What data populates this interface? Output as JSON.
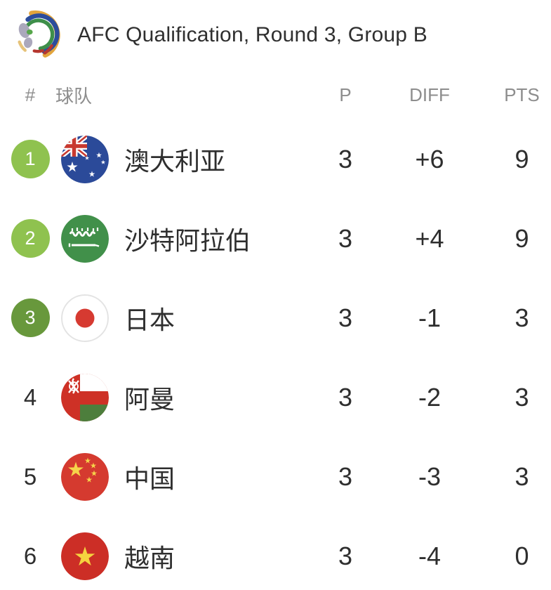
{
  "header": {
    "title": "AFC Qualification, Round 3, Group B",
    "logo": "afc-logo"
  },
  "table": {
    "columns": {
      "rank": "#",
      "team": "球队",
      "played": "P",
      "diff": "DIFF",
      "points": "PTS"
    },
    "rows": [
      {
        "rank": "1",
        "team": "澳大利亚",
        "flag": "australia-flag",
        "played": "3",
        "diff": "+6",
        "points": "9",
        "rank_style": "promotion",
        "badge_color": "#8FC24F"
      },
      {
        "rank": "2",
        "team": "沙特阿拉伯",
        "flag": "saudi-arabia-flag",
        "played": "3",
        "diff": "+4",
        "points": "9",
        "rank_style": "promotion",
        "badge_color": "#8FC24F"
      },
      {
        "rank": "3",
        "team": "日本",
        "flag": "japan-flag",
        "played": "3",
        "diff": "-1",
        "points": "3",
        "rank_style": "playoff",
        "badge_color": "#68983C"
      },
      {
        "rank": "4",
        "team": "阿曼",
        "flag": "oman-flag",
        "played": "3",
        "diff": "-2",
        "points": "3",
        "rank_style": "none",
        "badge_color": null
      },
      {
        "rank": "5",
        "team": "中国",
        "flag": "china-flag",
        "played": "3",
        "diff": "-3",
        "points": "3",
        "rank_style": "none",
        "badge_color": null
      },
      {
        "rank": "6",
        "team": "越南",
        "flag": "vietnam-flag",
        "played": "3",
        "diff": "-4",
        "points": "0",
        "rank_style": "none",
        "badge_color": null
      }
    ]
  },
  "colors": {
    "promotion_badge": "#8FC24F",
    "playoff_badge": "#68983C",
    "header_text": "#8D8D8D",
    "body_text": "#2E2E2E",
    "background": "#FFFFFF"
  }
}
